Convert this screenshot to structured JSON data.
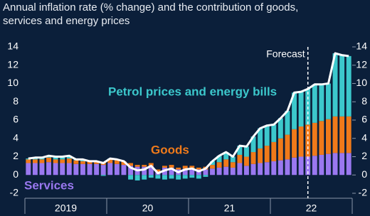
{
  "chart_data": {
    "type": "stacked-bar-line",
    "title": "Annual inflation rate (% change) and the contribution of goods,",
    "subtitle": "services and energy prices",
    "categories": [
      null,
      null,
      null,
      null,
      null,
      null,
      null,
      null,
      null,
      null,
      null,
      null,
      null,
      null,
      null,
      null,
      null,
      null,
      null,
      null,
      null,
      null,
      null,
      null,
      null,
      null,
      null,
      null,
      null,
      null,
      null,
      null,
      null,
      null,
      null,
      null,
      null,
      null,
      null,
      null,
      null,
      null,
      null,
      null,
      null,
      null,
      null,
      null
    ],
    "year_labels": [
      "2019",
      "20",
      "21",
      "22"
    ],
    "series": [
      {
        "name": "Services",
        "color": "#9a78f0",
        "values": [
          1.3,
          1.3,
          1.3,
          1.4,
          1.3,
          1.3,
          1.3,
          1.2,
          1.2,
          1.2,
          1.2,
          1.1,
          1.3,
          1.2,
          1.1,
          1.0,
          0.9,
          0.9,
          1.0,
          0.3,
          0.8,
          0.8,
          0.6,
          0.7,
          0.7,
          0.6,
          0.6,
          0.7,
          0.8,
          0.9,
          0.8,
          1.3,
          1.0,
          1.2,
          1.3,
          1.4,
          1.5,
          1.6,
          1.7,
          1.9,
          2.0,
          2.0,
          2.1,
          2.2,
          2.3,
          2.4,
          2.4,
          2.4
        ]
      },
      {
        "name": "Goods",
        "color": "#f07a1a",
        "values": [
          0.4,
          0.4,
          0.4,
          0.5,
          0.4,
          0.4,
          0.5,
          0.4,
          0.3,
          0.3,
          0.3,
          0.3,
          0.4,
          0.4,
          0.4,
          0.3,
          0.2,
          0.2,
          0.3,
          0.3,
          0.2,
          0.3,
          0.2,
          0.3,
          0.3,
          0.2,
          0.3,
          0.4,
          0.6,
          0.8,
          0.6,
          0.9,
          1.0,
          1.3,
          1.6,
          1.8,
          2.1,
          2.4,
          2.7,
          3.1,
          3.3,
          3.5,
          3.6,
          3.7,
          3.8,
          4.0,
          4.0,
          4.0
        ]
      },
      {
        "name": "Petrol prices and energy bills",
        "color": "#3cc8cc",
        "values": [
          0.1,
          0.2,
          0.2,
          0.2,
          0.3,
          0.3,
          0.3,
          0.1,
          0.2,
          0.0,
          0.0,
          -0.1,
          0.1,
          0.1,
          0.0,
          -0.5,
          -0.6,
          -0.5,
          -0.3,
          -0.4,
          -0.5,
          -0.4,
          -0.5,
          -0.4,
          -0.3,
          -0.4,
          -0.2,
          0.4,
          0.7,
          0.8,
          0.6,
          1.0,
          1.1,
          1.7,
          2.2,
          2.2,
          1.9,
          2.2,
          2.6,
          4.0,
          3.8,
          3.9,
          4.2,
          4.0,
          3.9,
          6.9,
          6.7,
          6.6
        ]
      }
    ],
    "line": {
      "color": "#ffffff",
      "values": [
        1.8,
        1.9,
        1.9,
        2.1,
        2.0,
        2.0,
        2.1,
        1.7,
        1.7,
        1.5,
        1.5,
        1.3,
        1.8,
        1.7,
        1.5,
        0.8,
        0.5,
        0.6,
        1.0,
        0.2,
        0.5,
        0.7,
        0.3,
        0.6,
        0.7,
        0.4,
        0.7,
        1.5,
        2.1,
        2.5,
        2.0,
        3.2,
        3.1,
        4.2,
        5.1,
        5.4,
        5.5,
        6.2,
        7.0,
        9.0,
        9.1,
        9.4,
        9.9,
        9.9,
        10.0,
        13.3,
        13.1,
        13.0
      ]
    },
    "forecast_label": "Forecast",
    "forecast_from": 41,
    "ylim": [
      -2,
      14
    ],
    "yticks": [
      -2,
      0,
      2,
      4,
      6,
      8,
      10,
      12,
      14
    ]
  }
}
